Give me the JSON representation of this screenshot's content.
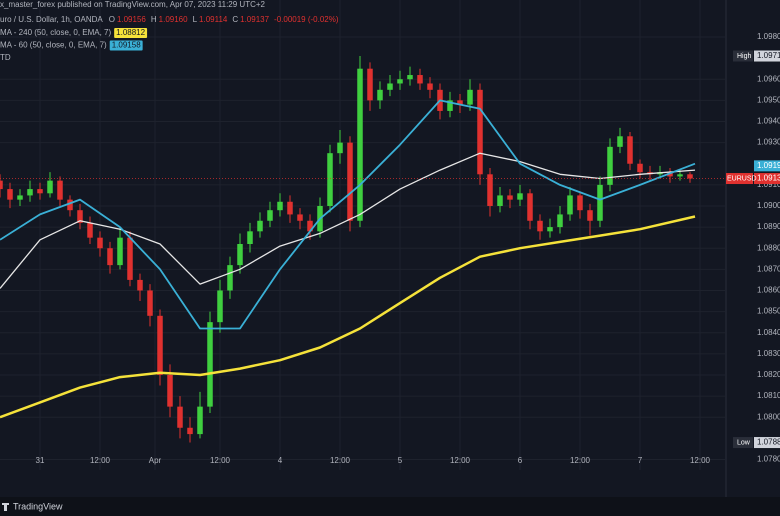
{
  "chart_data": {
    "type": "candlestick",
    "publisher": "x_master_forex published on TradingView.com, Apr 07, 2023 11:29 UTC+2",
    "symbol": "uro / U.S. Dollar, 1h, OANDA",
    "ohlc_legend": [
      {
        "key": "O",
        "value": "1.09156"
      },
      {
        "key": "H",
        "value": "1.09160"
      },
      {
        "key": "L",
        "value": "1.09114"
      },
      {
        "key": "C",
        "value": "1.09137"
      }
    ],
    "change": "-0.00019 (-0.02%)",
    "indicators": [
      {
        "label": "MA - 240 (50, close, 0, EMA, 7)",
        "value": "1.08812",
        "color": "#f5e23a"
      },
      {
        "label": "MA - 60 (50, close, 0, EMA, 7)",
        "value": "1.09158",
        "color": "#3ab0d6"
      },
      {
        "label": "TD"
      }
    ],
    "brand": "TradingView",
    "up_color": "#3fcf3f",
    "down_color": "#e0312f",
    "x": [
      0,
      2,
      4,
      6,
      8,
      10,
      12,
      14,
      16,
      18,
      20,
      22,
      24,
      26,
      28,
      30,
      32,
      34,
      36,
      38,
      40,
      42,
      44,
      46,
      48,
      50,
      52,
      54,
      56,
      58,
      60,
      62,
      64,
      66,
      68,
      70,
      72,
      74,
      76,
      78,
      80,
      82,
      84,
      86,
      88,
      90,
      92,
      94,
      96,
      98,
      100,
      102,
      104,
      106,
      108,
      110,
      112,
      114,
      116,
      118,
      120,
      122,
      124,
      126,
      128,
      130,
      132,
      134,
      136,
      138
    ],
    "open": [
      1.0912,
      1.0908,
      1.0903,
      1.0905,
      1.0908,
      1.0906,
      1.0912,
      1.0903,
      1.0898,
      1.0892,
      1.0885,
      1.088,
      1.0872,
      1.0885,
      1.0865,
      1.086,
      1.0848,
      1.082,
      1.0805,
      1.0795,
      1.0792,
      1.0805,
      1.0845,
      1.086,
      1.0872,
      1.0882,
      1.0888,
      1.0893,
      1.0898,
      1.0902,
      1.0896,
      1.0893,
      1.0888,
      1.09,
      1.0925,
      1.093,
      1.0893,
      1.0965,
      1.095,
      1.0955,
      1.0958,
      1.096,
      1.0962,
      1.0958,
      1.0955,
      1.0945,
      1.095,
      1.0948,
      1.0955,
      1.0915,
      1.09,
      1.0905,
      1.0903,
      1.0906,
      1.0893,
      1.0888,
      1.089,
      1.0896,
      1.0905,
      1.0898,
      1.0893,
      1.091,
      1.0928,
      1.0933,
      1.092,
      1.0916,
      1.0915,
      1.0916,
      1.0914,
      1.0915
    ],
    "high": [
      1.0915,
      1.0911,
      1.0908,
      1.0912,
      1.0911,
      1.0916,
      1.0914,
      1.0905,
      1.0901,
      1.0895,
      1.0888,
      1.0883,
      1.089,
      1.0888,
      1.0868,
      1.0863,
      1.0851,
      1.0825,
      1.081,
      1.08,
      1.0812,
      1.085,
      1.0865,
      1.0876,
      1.0887,
      1.0892,
      1.0897,
      1.0902,
      1.0906,
      1.0905,
      1.0899,
      1.0896,
      1.0904,
      1.0929,
      1.0936,
      1.0933,
      1.0971,
      1.0968,
      1.0959,
      1.0962,
      1.0964,
      1.0966,
      1.0965,
      1.0961,
      1.0958,
      1.0954,
      1.0953,
      1.096,
      1.0958,
      1.0918,
      1.0909,
      1.0908,
      1.091,
      1.0908,
      1.0896,
      1.0894,
      1.09,
      1.0909,
      1.0907,
      1.0901,
      1.0914,
      1.0932,
      1.0937,
      1.0935,
      1.0922,
      1.0919,
      1.0919,
      1.0918,
      1.0917,
      1.0916
    ],
    "low": [
      1.0904,
      1.0899,
      1.09,
      1.0902,
      1.0903,
      1.0904,
      1.09,
      1.0895,
      1.0889,
      1.0882,
      1.0876,
      1.0868,
      1.087,
      1.0862,
      1.0855,
      1.0843,
      1.0815,
      1.08,
      1.079,
      1.0788,
      1.079,
      1.0802,
      1.084,
      1.0856,
      1.0868,
      1.0878,
      1.0885,
      1.089,
      1.0895,
      1.0892,
      1.0889,
      1.0884,
      1.0885,
      1.0897,
      1.092,
      1.0888,
      1.089,
      1.0945,
      1.0946,
      1.0952,
      1.0955,
      1.0957,
      1.0955,
      1.0951,
      1.0941,
      1.0942,
      1.0944,
      1.0945,
      1.091,
      1.0895,
      1.0897,
      1.0899,
      1.09,
      1.0889,
      1.0884,
      1.0885,
      1.0887,
      1.0893,
      1.0894,
      1.0886,
      1.089,
      1.0907,
      1.0925,
      1.0917,
      1.0913,
      1.0912,
      1.0913,
      1.0911,
      1.0912,
      1.0911
    ],
    "close": [
      1.0908,
      1.0903,
      1.0905,
      1.0908,
      1.0906,
      1.0912,
      1.0903,
      1.0898,
      1.0892,
      1.0885,
      1.088,
      1.0872,
      1.0885,
      1.0865,
      1.086,
      1.0848,
      1.082,
      1.0805,
      1.0795,
      1.0792,
      1.0805,
      1.0845,
      1.086,
      1.0872,
      1.0882,
      1.0888,
      1.0893,
      1.0898,
      1.0902,
      1.0896,
      1.0893,
      1.0888,
      1.09,
      1.0925,
      1.093,
      1.0893,
      1.0965,
      1.095,
      1.0955,
      1.0958,
      1.096,
      1.0962,
      1.0958,
      1.0955,
      1.0945,
      1.095,
      1.0948,
      1.0955,
      1.0915,
      1.09,
      1.0905,
      1.0903,
      1.0906,
      1.0893,
      1.0888,
      1.089,
      1.0896,
      1.0905,
      1.0898,
      1.0893,
      1.091,
      1.0928,
      1.0933,
      1.092,
      1.0916,
      1.0915,
      1.0916,
      1.0914,
      1.0915,
      1.0913
    ],
    "overlays": [
      {
        "color": "#f5e23a",
        "width": 2.5,
        "x": [
          0,
          8,
          16,
          24,
          32,
          40,
          48,
          56,
          64,
          72,
          80,
          88,
          96,
          104,
          112,
          120,
          128,
          139
        ],
        "values": [
          1.08,
          1.0807,
          1.0814,
          1.0819,
          1.0821,
          1.082,
          1.0823,
          1.0827,
          1.0833,
          1.0842,
          1.0854,
          1.0866,
          1.0876,
          1.088,
          1.0883,
          1.0886,
          1.0889,
          1.0895
        ]
      },
      {
        "color": "#e6e6e6",
        "width": 1.3,
        "x": [
          0,
          8,
          16,
          24,
          32,
          40,
          48,
          56,
          64,
          72,
          80,
          88,
          96,
          104,
          112,
          120,
          128,
          139
        ],
        "values": [
          1.0861,
          1.0884,
          1.0893,
          1.0889,
          1.0882,
          1.0863,
          1.087,
          1.0881,
          1.0887,
          1.0896,
          1.0908,
          1.0917,
          1.0925,
          1.0921,
          1.0915,
          1.0913,
          1.0915,
          1.0917
        ]
      },
      {
        "color": "#3ab0d6",
        "width": 1.8,
        "x": [
          0,
          8,
          16,
          24,
          32,
          40,
          48,
          56,
          64,
          72,
          80,
          88,
          96,
          104,
          112,
          120,
          128,
          139
        ],
        "values": [
          1.0884,
          1.0896,
          1.0903,
          1.089,
          1.087,
          1.0842,
          1.0842,
          1.087,
          1.0894,
          1.091,
          1.0929,
          1.095,
          1.0946,
          1.092,
          1.091,
          1.0903,
          1.091,
          1.092
        ]
      }
    ],
    "xlim": [
      0,
      145
    ],
    "ylim": [
      1.0775,
      1.0989
    ],
    "xticks": [
      {
        "value": 8,
        "label": "31"
      },
      {
        "value": 20,
        "label": "12:00"
      },
      {
        "value": 31,
        "label": "Apr"
      },
      {
        "value": 44,
        "label": "12:00"
      },
      {
        "value": 56,
        "label": "4"
      },
      {
        "value": 68,
        "label": "12:00"
      },
      {
        "value": 80,
        "label": "5"
      },
      {
        "value": 92,
        "label": "12:00"
      },
      {
        "value": 104,
        "label": "6"
      },
      {
        "value": 116,
        "label": "12:00"
      },
      {
        "value": 128,
        "label": "7"
      },
      {
        "value": 140,
        "label": "12:00"
      }
    ],
    "yticks": [
      {
        "value": 1.078,
        "label": "1.0780"
      },
      {
        "value": 1.08,
        "label": "1.0800"
      },
      {
        "value": 1.081,
        "label": "1.0810"
      },
      {
        "value": 1.082,
        "label": "1.0820"
      },
      {
        "value": 1.083,
        "label": "1.0830"
      },
      {
        "value": 1.084,
        "label": "1.0840"
      },
      {
        "value": 1.085,
        "label": "1.0850"
      },
      {
        "value": 1.086,
        "label": "1.0860"
      },
      {
        "value": 1.087,
        "label": "1.0870"
      },
      {
        "value": 1.088,
        "label": "1.0880"
      },
      {
        "value": 1.089,
        "label": "1.0890"
      },
      {
        "value": 1.09,
        "label": "1.0900"
      },
      {
        "value": 1.091,
        "label": "1.0910"
      },
      {
        "value": 1.093,
        "label": "1.0930"
      },
      {
        "value": 1.094,
        "label": "1.0940"
      },
      {
        "value": 1.095,
        "label": "1.0950"
      },
      {
        "value": 1.096,
        "label": "1.0960"
      },
      {
        "value": 1.098,
        "label": "1.0980"
      }
    ],
    "grid": true,
    "price_labels": [
      {
        "label": "High",
        "value": 1.0971,
        "color": "#d1d4dc"
      },
      {
        "value": 1.0919,
        "color": "#3ab0d6"
      },
      {
        "label": "EURUSD",
        "value": 1.0913,
        "color": "#e0312f"
      },
      {
        "label": "Low",
        "value": 1.0788,
        "color": "#d1d4dc"
      }
    ]
  }
}
